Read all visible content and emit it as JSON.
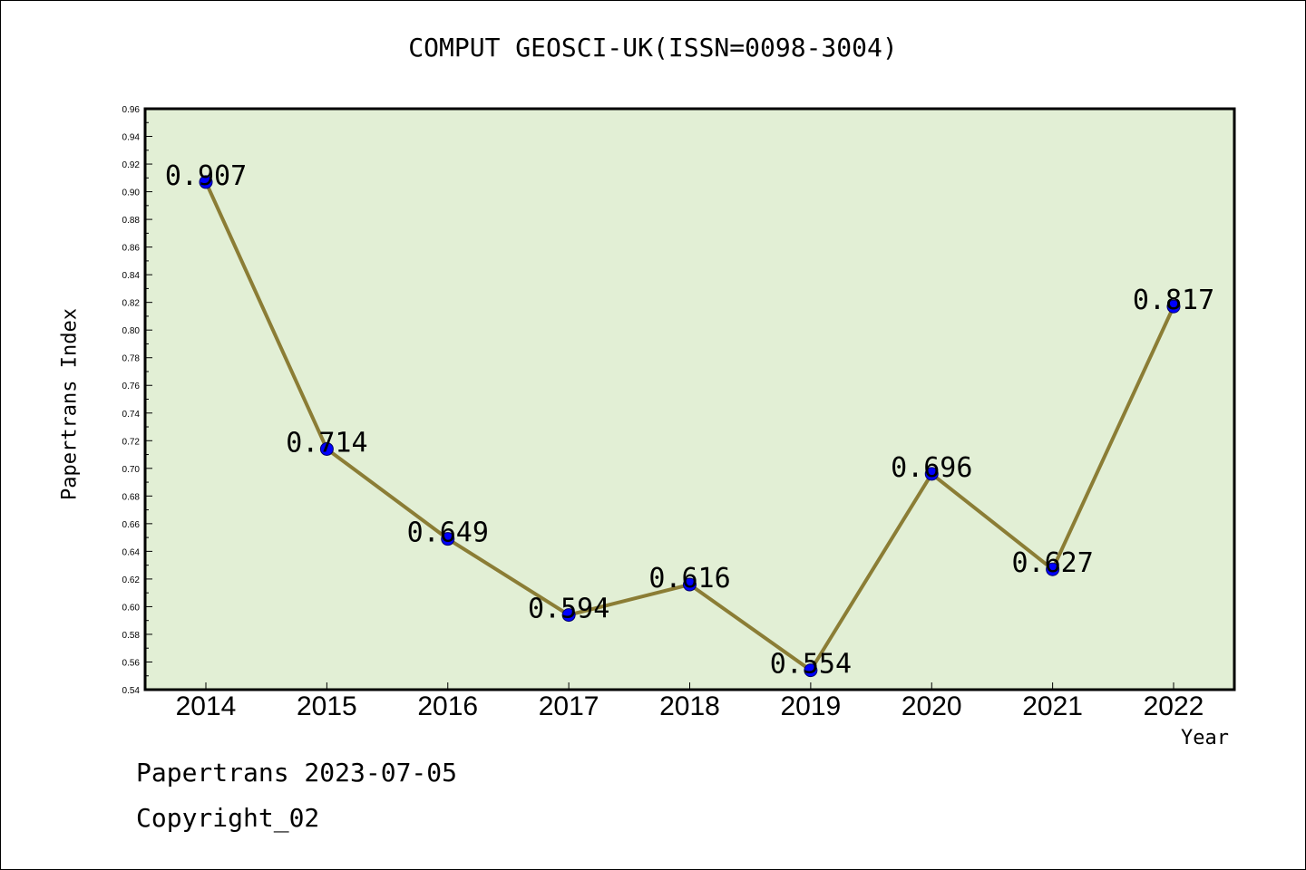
{
  "chart_data": {
    "type": "line",
    "title": "COMPUT GEOSCI-UK(ISSN=0098-3004)",
    "xlabel": "Year",
    "ylabel": "Papertrans Index",
    "categories": [
      "2014",
      "2015",
      "2016",
      "2017",
      "2018",
      "2019",
      "2020",
      "2021",
      "2022"
    ],
    "values": [
      0.907,
      0.714,
      0.649,
      0.594,
      0.616,
      0.554,
      0.696,
      0.627,
      0.817
    ],
    "data_labels": [
      "0.907",
      "0.714",
      "0.649",
      "0.594",
      "0.616",
      "0.554",
      "0.696",
      "0.627",
      "0.817"
    ],
    "ylim": [
      0.54,
      0.96
    ],
    "yticks": [
      "0.54",
      "0.56",
      "0.58",
      "0.60",
      "0.62",
      "0.64",
      "0.66",
      "0.68",
      "0.70",
      "0.72",
      "0.74",
      "0.76",
      "0.78",
      "0.80",
      "0.82",
      "0.84",
      "0.86",
      "0.88",
      "0.90",
      "0.92",
      "0.94",
      "0.96"
    ],
    "grid": false,
    "colors": {
      "plot_background": "#e2efd5",
      "line": "#8b7d35",
      "marker": "#0000ff"
    }
  },
  "footer": {
    "line1": "Papertrans 2023-07-05",
    "line2": "Copyright_02"
  }
}
